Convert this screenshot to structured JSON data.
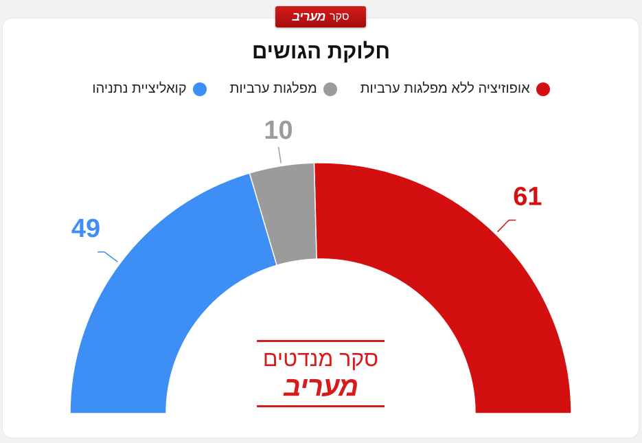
{
  "badge": {
    "word": "סקר",
    "brand": "מעריב"
  },
  "chart_data": {
    "type": "pie",
    "subtype": "half-donut",
    "title": "חלוקת הגושים",
    "legend_position": "top",
    "series": [
      {
        "name": "אופוזיציה ללא מפלגות ערביות",
        "value": 61,
        "color": "#d40f0f"
      },
      {
        "name": "מפלגות ערביות",
        "value": 10,
        "color": "#9b9b9b"
      },
      {
        "name": "קואליציית נתניהו",
        "value": 49,
        "color": "#3d8ef5"
      }
    ]
  },
  "center_logo": {
    "survey": "סקר מנדטים",
    "brand": "מעריב"
  }
}
